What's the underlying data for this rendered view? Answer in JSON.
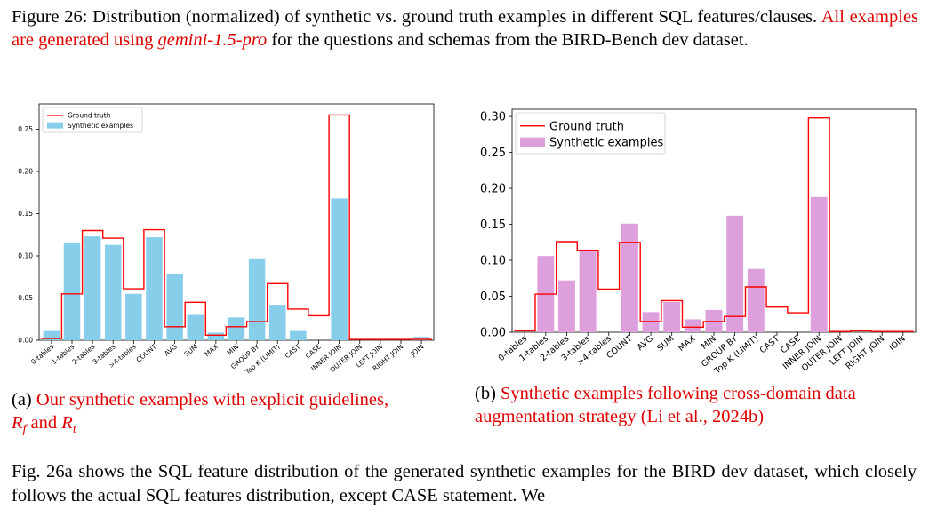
{
  "figure": {
    "label": "Figure 26:",
    "caption_black": "Distribution (normalized) of synthetic vs. ground truth examples in different SQL features/clauses.",
    "caption_red_pre": "All examples are generated using",
    "caption_red_model": "gemini-1.5-pro",
    "caption_black_post": "for the questions and schemas from the BIRD-Bench dev dataset."
  },
  "subcaption_a": {
    "tag": "(a)",
    "text": "Our synthetic examples with explicit guidelines,",
    "r_f": "R",
    "r_f_sub": "f",
    "and": "and",
    "r_t": "R",
    "r_t_sub": "t"
  },
  "subcaption_b": {
    "tag": "(b)",
    "text": "Synthetic examples following cross-domain data augmentation strategy (Li et al., 2024b)"
  },
  "body_text": "Fig. 26a shows the SQL feature distribution of the generated synthetic examples for the BIRD dev dataset, which closely follows the actual SQL features distribution, except CASE statement.  We",
  "colors": {
    "ground_truth": "#ff0000",
    "synthetic_a": "#87ceeb",
    "synthetic_b": "#dda0dd",
    "red_text": "#e00000"
  },
  "chart_data": [
    {
      "type": "bar",
      "title": "",
      "xlabel": "",
      "ylabel": "",
      "ylim": [
        0,
        0.28
      ],
      "yticks": [
        "0.00",
        "0.05",
        "0.10",
        "0.15",
        "0.20",
        "0.25"
      ],
      "legend": [
        "Ground truth",
        "Synthetic examples"
      ],
      "legend_position": "top-left",
      "categories": [
        "0-tables",
        "1-tables",
        "2-tables",
        "3-tables",
        ">4-tables",
        "COUNT",
        "AVG",
        "SUM",
        "MAX",
        "MIN",
        "GROUP BY",
        "Top K (LIMIT)",
        "CAST",
        "CASE",
        "INNER JOIN",
        "OUTER JOIN",
        "LEFT JOIN",
        "RIGHT JOIN",
        "JOIN"
      ],
      "series": [
        {
          "name": "Synthetic examples",
          "kind": "bar",
          "values": [
            0.011,
            0.115,
            0.123,
            0.113,
            0.055,
            0.122,
            0.078,
            0.03,
            0.009,
            0.027,
            0.097,
            0.042,
            0.011,
            0.0,
            0.168,
            0.0,
            0.0,
            0.0,
            0.004
          ]
        },
        {
          "name": "Ground truth",
          "kind": "step",
          "values": [
            0.002,
            0.055,
            0.13,
            0.121,
            0.061,
            0.131,
            0.016,
            0.045,
            0.006,
            0.016,
            0.022,
            0.067,
            0.037,
            0.029,
            0.267,
            0.001,
            0.001,
            0.001,
            0.001
          ]
        }
      ]
    },
    {
      "type": "bar",
      "title": "",
      "xlabel": "",
      "ylabel": "",
      "ylim": [
        0,
        0.31
      ],
      "yticks": [
        "0.00",
        "0.05",
        "0.10",
        "0.15",
        "0.20",
        "0.25",
        "0.30"
      ],
      "legend": [
        "Ground truth",
        "Synthetic examples"
      ],
      "legend_position": "top-left",
      "categories": [
        "0-tables",
        "1-tables",
        "2-tables",
        "3-tables",
        ">4-tables",
        "COUNT",
        "AVG",
        "SUM",
        "MAX",
        "MIN",
        "GROUP BY",
        "Top K (LIMIT)",
        "CAST",
        "CASE",
        "INNER JOIN",
        "OUTER JOIN",
        "LEFT JOIN",
        "RIGHT JOIN",
        "JOIN"
      ],
      "series": [
        {
          "name": "Synthetic examples",
          "kind": "bar",
          "values": [
            0.0,
            0.106,
            0.072,
            0.115,
            0.0,
            0.151,
            0.028,
            0.042,
            0.018,
            0.031,
            0.162,
            0.088,
            0.0,
            0.0,
            0.188,
            0.0,
            0.0,
            0.0,
            0.0
          ]
        },
        {
          "name": "Ground truth",
          "kind": "step",
          "values": [
            0.002,
            0.053,
            0.126,
            0.114,
            0.06,
            0.125,
            0.015,
            0.044,
            0.007,
            0.015,
            0.022,
            0.063,
            0.035,
            0.027,
            0.298,
            0.001,
            0.002,
            0.001,
            0.001
          ]
        }
      ]
    }
  ]
}
